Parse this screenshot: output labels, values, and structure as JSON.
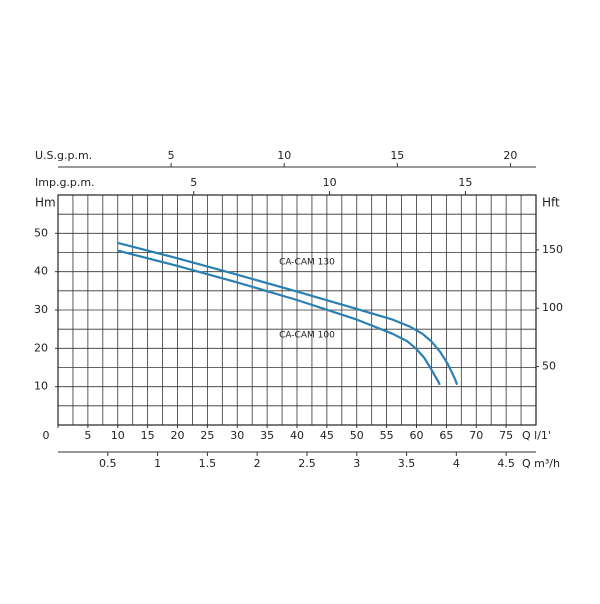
{
  "chart_data": {
    "type": "line",
    "xlabel": "Q l/1'",
    "xlim": [
      0,
      80
    ],
    "xticks": [
      0,
      5,
      10,
      15,
      20,
      25,
      30,
      35,
      40,
      45,
      50,
      55,
      60,
      65,
      70,
      75
    ],
    "ylabel": "Hm",
    "ylim": [
      0,
      60
    ],
    "yticks": [
      10,
      20,
      30,
      40,
      50
    ],
    "y2label": "Hft",
    "y2lim": [
      0,
      197
    ],
    "y2ticks": [
      50,
      100,
      150
    ],
    "top_axes": [
      {
        "label": "U.S.g.p.m.",
        "xlim": [
          0,
          21.13
        ],
        "xticks": [
          5,
          10,
          15,
          20
        ]
      },
      {
        "label": "Imp.g.p.m.",
        "xlim": [
          0,
          17.6
        ],
        "xticks": [
          5,
          10,
          15
        ]
      }
    ],
    "bottom_axis2": {
      "label": "Q m³/h",
      "xlim": [
        0,
        4.8
      ],
      "xticks": [
        0.5,
        1,
        1.5,
        2,
        2.5,
        3,
        3.5,
        4,
        4.5
      ]
    },
    "grid": true,
    "series": [
      {
        "name": "CA-CAM 130",
        "color": "#2b80b3",
        "x": [
          10,
          20,
          30,
          40,
          50,
          56,
          59,
          61,
          62.5,
          64,
          65.2,
          66,
          66.5,
          66.8
        ],
        "values": [
          47.5,
          43.5,
          39.2,
          34.8,
          30.3,
          27.5,
          25.6,
          23.8,
          21.8,
          19,
          16,
          13.5,
          11.8,
          10.5
        ]
      },
      {
        "name": "CA-CAM 100",
        "color": "#2b80b3",
        "x": [
          10,
          20,
          30,
          40,
          50,
          56,
          58.5,
          60,
          61.3,
          62.3,
          63.1,
          63.6,
          63.9
        ],
        "values": [
          45.5,
          41.5,
          37.2,
          32.6,
          27.5,
          23.8,
          21.8,
          19.8,
          17.5,
          15,
          12.8,
          11.5,
          10.5
        ]
      }
    ]
  }
}
